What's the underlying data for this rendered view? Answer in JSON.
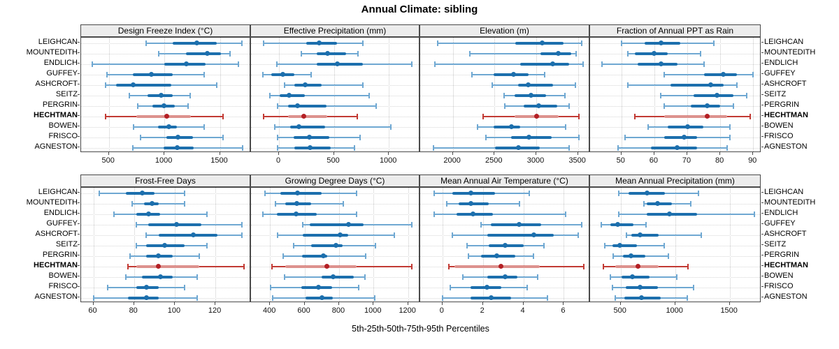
{
  "title": "Annual Climate: sibling",
  "caption": "5th-25th-50th-75th-95th Percentiles",
  "colors": {
    "blue_whisker": "#6fa8d2",
    "blue_band": "#1c6fad",
    "blue_dot": "#1c6fad",
    "red_whisker": "#c23a34",
    "red_band": "#dd928e",
    "red_dot": "#b42025",
    "gridline": "#c9c9c9",
    "strip_bg": "#ececec",
    "panel_border": "#4a4a4a"
  },
  "chart_data": {
    "type": "dot-interval",
    "grid": "2x4",
    "percentile_labels": [
      "5th",
      "25th",
      "50th",
      "75th",
      "95th"
    ],
    "categories": [
      "LEIGHCAN",
      "MOUNTEDITH",
      "ENDLICH",
      "GUFFEY",
      "ASHCROFT",
      "SEITZ",
      "PERGRIN",
      "HECHTMAN",
      "BOWEN",
      "FRISCO",
      "AGNESTON"
    ],
    "highlight_category": "HECHTMAN",
    "caption": "5th-25th-50th-75th-95th Percentiles",
    "panels": [
      {
        "title": "Design Freeze Index (°C)",
        "xlim": [
          250,
          1780
        ],
        "ticks": [
          500,
          1000,
          1500
        ],
        "rows": [
          [
            835,
            1075,
            1290,
            1470,
            1700
          ],
          [
            950,
            1195,
            1385,
            1510,
            1590
          ],
          [
            350,
            1000,
            1200,
            1370,
            1665
          ],
          [
            485,
            715,
            885,
            1075,
            1360
          ],
          [
            470,
            565,
            720,
            1065,
            1470
          ],
          [
            685,
            850,
            970,
            1075,
            1235
          ],
          [
            760,
            895,
            995,
            1095,
            1215
          ],
          [
            470,
            745,
            1020,
            1240,
            1525
          ],
          [
            725,
            945,
            1040,
            1115,
            1355
          ],
          [
            785,
            1020,
            1120,
            1260,
            1530
          ],
          [
            715,
            990,
            1115,
            1265,
            1705
          ]
        ]
      },
      {
        "title": "Effective Precipitation (mm)",
        "xlim": [
          -255,
          1285
        ],
        "ticks": [
          0,
          500,
          1000
        ],
        "rows": [
          [
            -140,
            250,
            365,
            525,
            765
          ],
          [
            205,
            345,
            440,
            610,
            720
          ],
          [
            -20,
            345,
            530,
            765,
            1210
          ],
          [
            -150,
            -70,
            35,
            140,
            295
          ],
          [
            50,
            140,
            235,
            385,
            765
          ],
          [
            -85,
            5,
            90,
            235,
            820
          ],
          [
            -15,
            80,
            165,
            430,
            885
          ],
          [
            -140,
            85,
            225,
            440,
            710
          ],
          [
            -40,
            100,
            180,
            420,
            1020
          ],
          [
            -15,
            130,
            275,
            460,
            740
          ],
          [
            -15,
            140,
            285,
            470,
            685
          ]
        ]
      },
      {
        "title": "Elevation (m)",
        "xlim": [
          1610,
          3645
        ],
        "ticks": [
          2000,
          2500,
          3000,
          3500
        ],
        "rows": [
          [
            1820,
            2750,
            3075,
            3330,
            3545
          ],
          [
            2200,
            3050,
            3260,
            3420,
            3480
          ],
          [
            1785,
            2810,
            3195,
            3395,
            3565
          ],
          [
            2230,
            2490,
            2725,
            2910,
            3100
          ],
          [
            2475,
            2780,
            2900,
            3200,
            3465
          ],
          [
            2615,
            2740,
            2935,
            3115,
            3340
          ],
          [
            2625,
            2850,
            3030,
            3255,
            3390
          ],
          [
            2365,
            2740,
            3005,
            3270,
            3510
          ],
          [
            2300,
            2490,
            2700,
            2810,
            3350
          ],
          [
            2400,
            2700,
            2915,
            3185,
            3510
          ],
          [
            1770,
            2505,
            2790,
            3045,
            3395
          ]
        ]
      },
      {
        "title": "Fraction of Annual PPT as Rain",
        "xlim": [
          40.5,
          92.5
        ],
        "ticks": [
          50,
          60,
          70,
          80,
          90
        ],
        "rows": [
          [
            50,
            57,
            62,
            68,
            78
          ],
          [
            52,
            54,
            60,
            64,
            74
          ],
          [
            44,
            55,
            62,
            67,
            75
          ],
          [
            63,
            75,
            81,
            85,
            90
          ],
          [
            52,
            65,
            77,
            81,
            85
          ],
          [
            62,
            72,
            79,
            84,
            88
          ],
          [
            63,
            71,
            76,
            80,
            84
          ],
          [
            54,
            63,
            76,
            82,
            89
          ],
          [
            58,
            64,
            70,
            75,
            83
          ],
          [
            51,
            63,
            69,
            73,
            83
          ],
          [
            49,
            59,
            67,
            73,
            82
          ]
        ]
      },
      {
        "title": "Frost-Free Days",
        "xlim": [
          54,
          137.5
        ],
        "ticks": [
          60,
          80,
          100,
          120
        ],
        "rows": [
          [
            63,
            76,
            84,
            90,
            105
          ],
          [
            79,
            85,
            89,
            92,
            105
          ],
          [
            70,
            81,
            87,
            93,
            116
          ],
          [
            81,
            87,
            101,
            113,
            133
          ],
          [
            86,
            92,
            109,
            121,
            133
          ],
          [
            81,
            86,
            95,
            105,
            116
          ],
          [
            78,
            86,
            92,
            99,
            112
          ],
          [
            77,
            81,
            92,
            112,
            134
          ],
          [
            76,
            84,
            93,
            99,
            111
          ],
          [
            67,
            81,
            86,
            92,
            105
          ],
          [
            60,
            77,
            86,
            92,
            111
          ]
        ]
      },
      {
        "title": "Growing Degree Days (°C)",
        "xlim": [
          290,
          1270
        ],
        "ticks": [
          400,
          600,
          800,
          1000,
          1200
        ],
        "rows": [
          [
            370,
            460,
            560,
            700,
            900
          ],
          [
            430,
            490,
            555,
            640,
            825
          ],
          [
            360,
            440,
            550,
            670,
            900
          ],
          [
            590,
            630,
            855,
            940,
            1220
          ],
          [
            445,
            590,
            805,
            855,
            1120
          ],
          [
            535,
            640,
            780,
            820,
            1010
          ],
          [
            475,
            585,
            710,
            730,
            955
          ],
          [
            410,
            490,
            730,
            900,
            1220
          ],
          [
            485,
            700,
            765,
            885,
            950
          ],
          [
            405,
            580,
            680,
            760,
            915
          ],
          [
            415,
            605,
            700,
            765,
            1005
          ]
        ]
      },
      {
        "title": "Mean Annual Air Temperature (°C)",
        "xlim": [
          -1.1,
          7.3
        ],
        "ticks": [
          0,
          2,
          4,
          6
        ],
        "rows": [
          [
            -0.4,
            0.5,
            1.4,
            2.6,
            4.3
          ],
          [
            0.2,
            0.8,
            1.4,
            2.3,
            3.8
          ],
          [
            -0.4,
            0.7,
            1.5,
            2.5,
            6.1
          ],
          [
            1.9,
            2.4,
            3.8,
            4.9,
            6.9
          ],
          [
            0.5,
            2.2,
            4.5,
            5.5,
            6.7
          ],
          [
            1.2,
            2.3,
            3.1,
            4.0,
            5.0
          ],
          [
            1.3,
            1.9,
            2.7,
            3.6,
            4.5
          ],
          [
            0.3,
            0.6,
            2.9,
            4.8,
            7.0
          ],
          [
            1.0,
            2.2,
            3.1,
            3.7,
            4.7
          ],
          [
            0.4,
            1.4,
            2.2,
            2.9,
            4.2
          ],
          [
            0.0,
            1.4,
            2.4,
            3.4,
            5.2
          ]
        ]
      },
      {
        "title": "Mean Annual Precipitation (mm)",
        "xlim": [
          220,
          1790
        ],
        "ticks": [
          500,
          1000,
          1500
        ],
        "rows": [
          [
            485,
            570,
            740,
            905,
            1210
          ],
          [
            710,
            740,
            840,
            970,
            1145
          ],
          [
            485,
            740,
            945,
            1200,
            1725
          ],
          [
            325,
            405,
            475,
            620,
            735
          ],
          [
            550,
            595,
            675,
            845,
            1240
          ],
          [
            355,
            425,
            490,
            650,
            900
          ],
          [
            430,
            520,
            595,
            725,
            940
          ],
          [
            340,
            450,
            660,
            850,
            1120
          ],
          [
            405,
            510,
            605,
            765,
            1015
          ],
          [
            425,
            545,
            680,
            845,
            1170
          ],
          [
            450,
            535,
            690,
            865,
            1110
          ]
        ]
      }
    ]
  }
}
